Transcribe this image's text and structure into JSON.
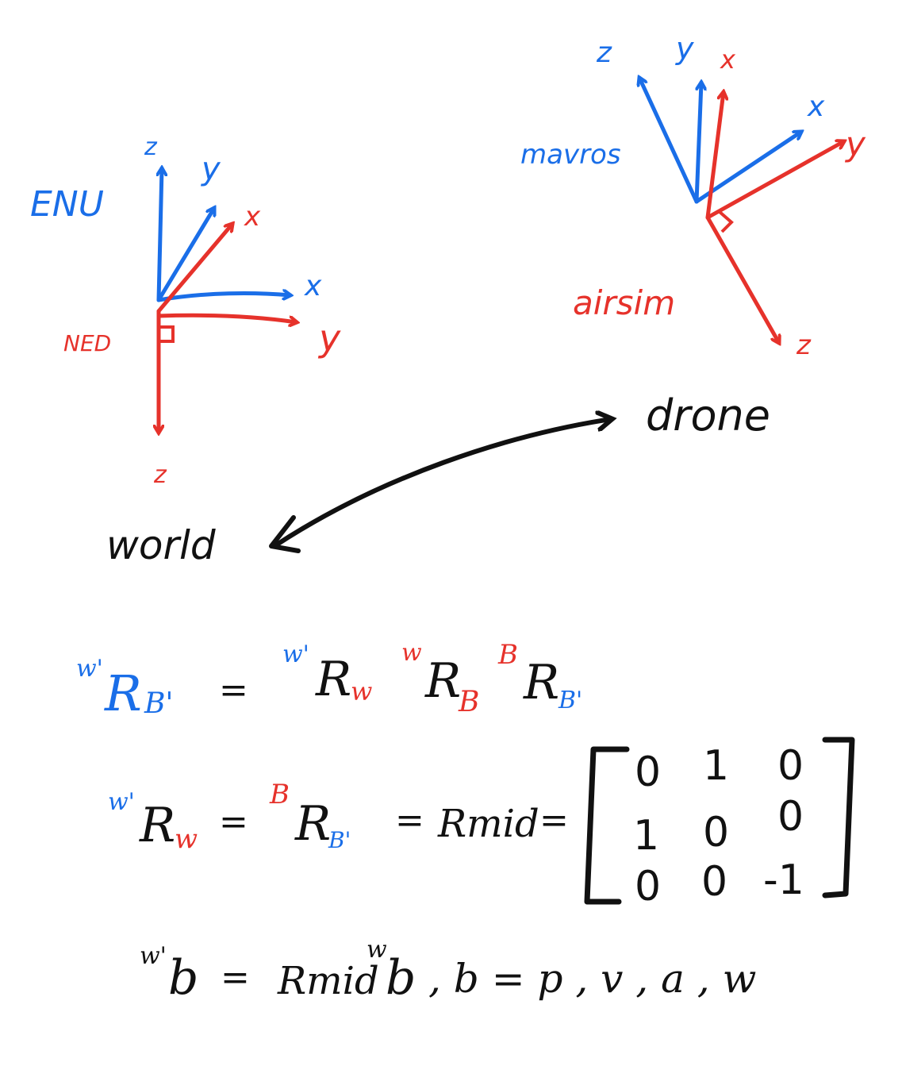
{
  "colors": {
    "blue": "#1a6ee8",
    "red": "#e6322b",
    "black": "#111111"
  },
  "left_frames": {
    "enu_label": "ENU",
    "ned_label": "NED",
    "enu_axes": {
      "x": "x",
      "y": "y",
      "z": "z"
    },
    "ned_axes": {
      "x": "x",
      "y": "y",
      "z": "z"
    }
  },
  "right_frames": {
    "mavros_label": "mavros",
    "airsim_label": "airsim",
    "mavros_axes": {
      "x": "x",
      "y": "y",
      "z": "z"
    },
    "airsim_axes": {
      "x": "x",
      "y": "y",
      "z": "z"
    }
  },
  "link": {
    "left": "world",
    "right": "drone"
  },
  "equations": {
    "eq1": {
      "lhs_pre": "w'",
      "lhs_R": "R",
      "lhs_sub": "B'",
      "eq": "=",
      "t1_pre": "w'",
      "t1_R": "R",
      "t1_sub": "w",
      "t2_pre": "w",
      "t2_R": "R",
      "t2_sub": "B",
      "t3_pre": "B",
      "t3_R": "R",
      "t3_sub": "B'"
    },
    "eq2": {
      "a_pre": "w'",
      "a_R": "R",
      "a_sub": "w",
      "eq1": "=",
      "b_pre": "B",
      "b_R": "R",
      "b_sub": "B'",
      "eq2": "=",
      "rmid": "Rmid",
      "eq3": "=",
      "matrix": [
        [
          "0",
          "1",
          "0"
        ],
        [
          "1",
          "0",
          "0"
        ],
        [
          "0",
          "0",
          "-1"
        ]
      ]
    },
    "eq3": {
      "lhs_pre": "w'",
      "lhs_b": "b",
      "eq": "=",
      "rmid": "Rmid",
      "r_pre": "w",
      "r_b": "b",
      "tail": ", b = p , v , a , w"
    }
  }
}
